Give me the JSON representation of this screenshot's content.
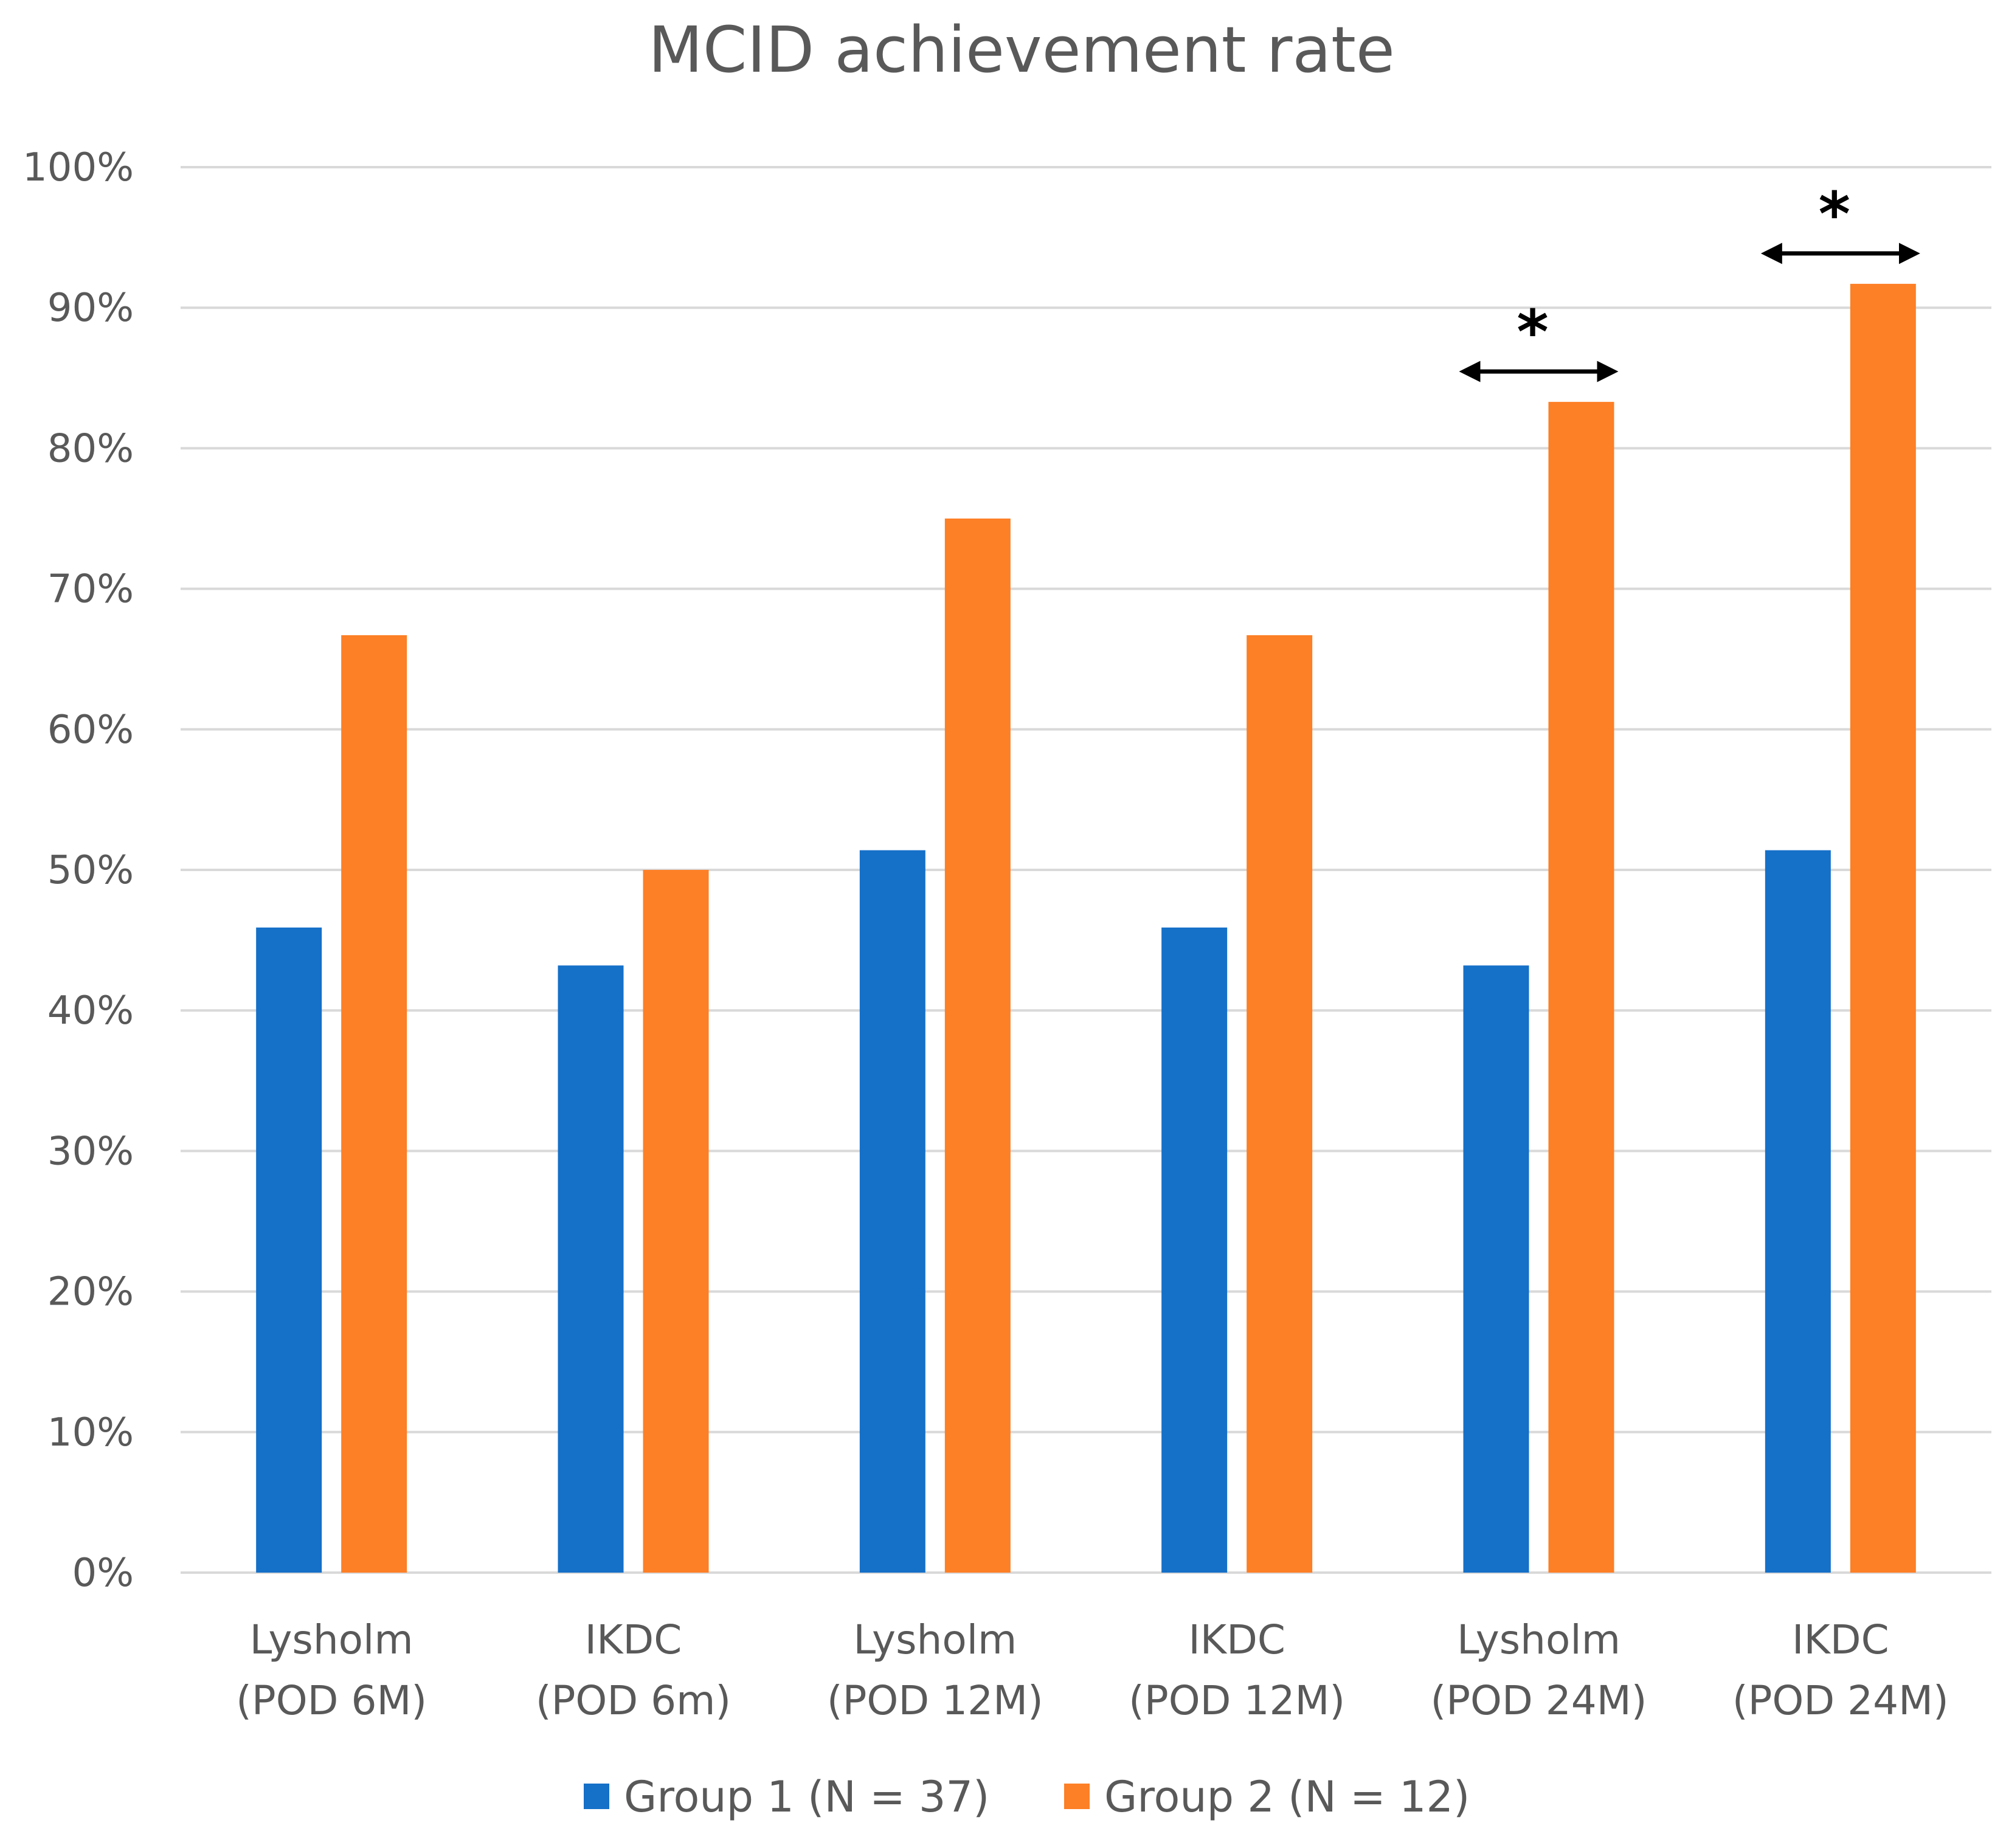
{
  "chart_data": {
    "type": "bar",
    "title": "MCID achievement rate",
    "xlabel": "",
    "ylabel": "",
    "ylim": [
      0,
      100
    ],
    "yticks": [
      "0%",
      "10%",
      "20%",
      "30%",
      "40%",
      "50%",
      "60%",
      "70%",
      "80%",
      "90%",
      "100%"
    ],
    "grid": true,
    "legend_position": "bottom",
    "categories": [
      [
        "Lysholm",
        "(POD 6M)"
      ],
      [
        "IKDC",
        "(POD 6m)"
      ],
      [
        "Lysholm",
        "(POD 12M)"
      ],
      [
        "IKDC",
        "(POD 12M)"
      ],
      [
        "Lysholm",
        "(POD 24M)"
      ],
      [
        "IKDC",
        "(POD 24M)"
      ]
    ],
    "series": [
      {
        "name": "Group 1 (N = 37)",
        "color": "#1570c8",
        "values": [
          45.9,
          43.2,
          51.4,
          45.9,
          43.2,
          51.4
        ]
      },
      {
        "name": "Group 2 (N = 12)",
        "color": "#fd7f26",
        "values": [
          66.7,
          50.0,
          75.0,
          66.7,
          83.3,
          91.7
        ]
      }
    ],
    "annotations": [
      {
        "category_index": 4,
        "label": "*",
        "type": "significance-arrow"
      },
      {
        "category_index": 5,
        "label": "*",
        "type": "significance-arrow"
      }
    ]
  }
}
